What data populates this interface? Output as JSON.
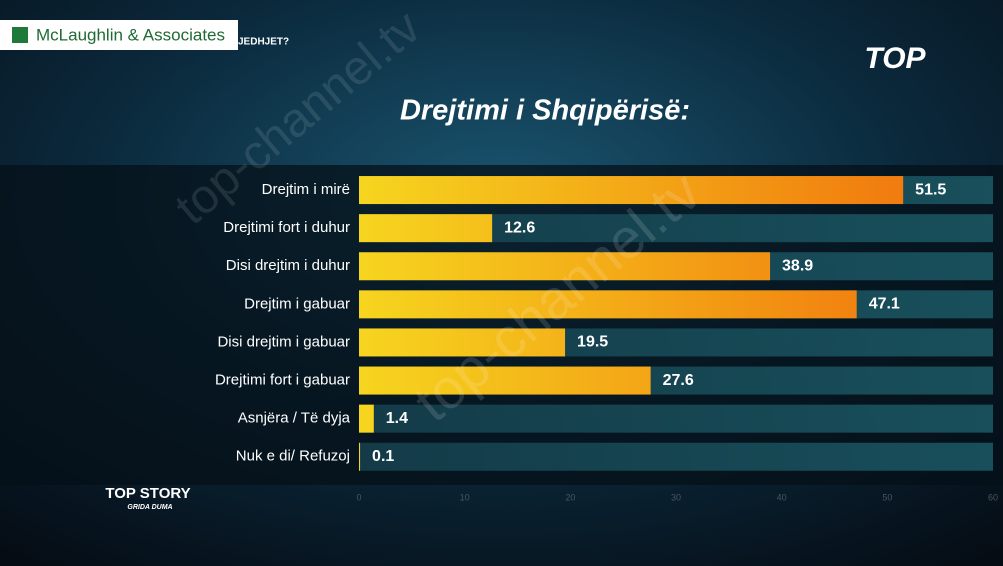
{
  "header": {
    "pollster": "McLaughlin & Associates",
    "question_fragment": "JEDHJET?",
    "channel_logo": "TOP"
  },
  "chart_data": {
    "type": "bar",
    "orientation": "horizontal",
    "title": "Drejtimi i Shqipërisë:",
    "categories": [
      "Drejtim i mirë",
      "Drejtimi fort i duhur",
      "Disi drejtim i duhur",
      "Drejtim i gabuar",
      "Disi drejtim i gabuar",
      "Drejtimi fort i gabuar",
      "Asnjëra / Të dyja",
      "Nuk e di/ Refuzoj"
    ],
    "values": [
      51.5,
      12.6,
      38.9,
      47.1,
      19.5,
      27.6,
      1.4,
      0.1
    ],
    "color": [
      "#f6d51f",
      "#f06c0c"
    ],
    "xlim": [
      0,
      60
    ],
    "xticks": [
      0,
      10,
      20,
      30,
      40,
      50,
      60
    ]
  },
  "footer": {
    "show": "TOP STORY",
    "host": "GRIDA DUMA"
  },
  "watermark": "top-channel.tv"
}
